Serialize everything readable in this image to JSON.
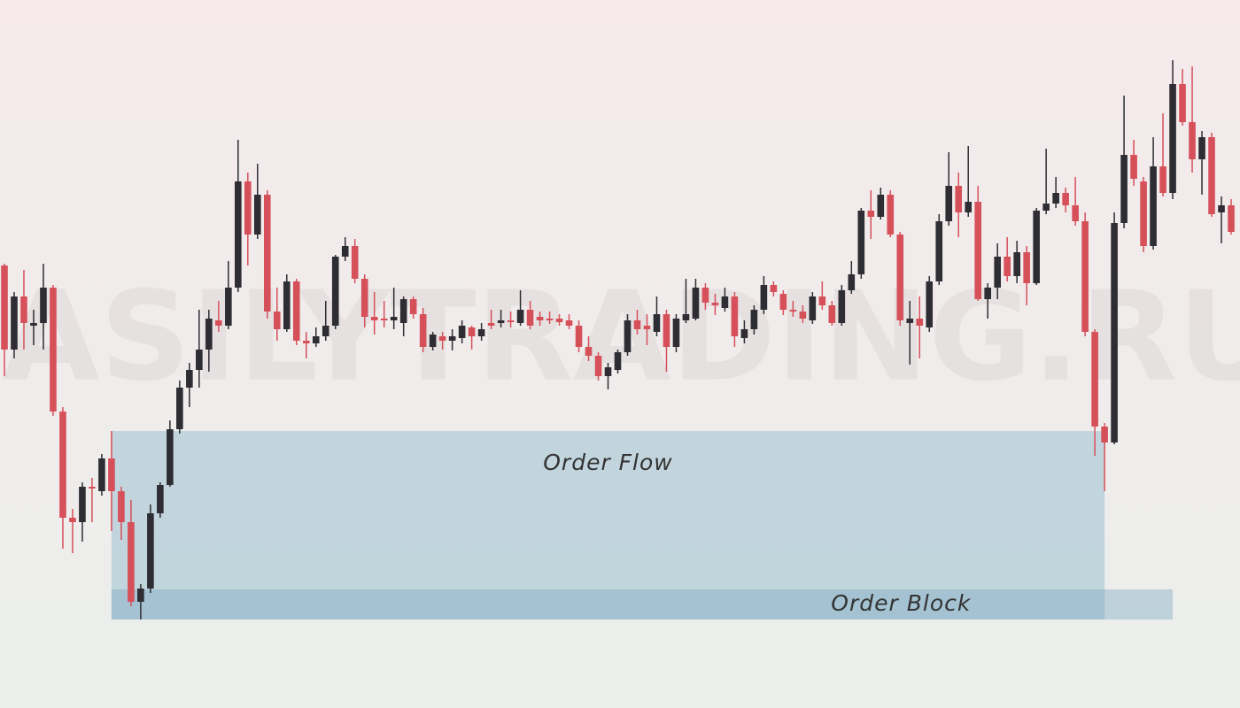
{
  "chart_data": {
    "type": "candlestick",
    "watermark": "EASILYTRADING.RU",
    "ylim": [
      0,
      800
    ],
    "up_color": "#2d2d33",
    "down_color": "#d6505a",
    "open": [
      500,
      405,
      465,
      432,
      435,
      475,
      335,
      215,
      210,
      250,
      245,
      282,
      245,
      210,
      120,
      135,
      220,
      252,
      315,
      362,
      382,
      405,
      438,
      432,
      475,
      595,
      535,
      580,
      448,
      428,
      482,
      415,
      412,
      420,
      432,
      510,
      522,
      485,
      442,
      440,
      438,
      435,
      462,
      445,
      408,
      420,
      415,
      418,
      430,
      420,
      435,
      435,
      438,
      435,
      450,
      442,
      440,
      440,
      438,
      432,
      408,
      398,
      375,
      382,
      402,
      438,
      432,
      425,
      445,
      408,
      438,
      440,
      475,
      458,
      452,
      465,
      418,
      428,
      450,
      478,
      468,
      450,
      448,
      438,
      465,
      455,
      435,
      472,
      490,
      562,
      555,
      580,
      535,
      435,
      440,
      430,
      482,
      550,
      590,
      560,
      572,
      462,
      475,
      510,
      488,
      515,
      480,
      562,
      570,
      582,
      568,
      550,
      425,
      318,
      300,
      548,
      625,
      595,
      522,
      612,
      582,
      705,
      662,
      620,
      645,
      560,
      568
    ],
    "high": [
      502,
      470,
      495,
      450,
      502,
      478,
      340,
      225,
      255,
      260,
      287,
      313,
      250,
      235,
      140,
      230,
      255,
      325,
      370,
      390,
      450,
      450,
      460,
      505,
      642,
      605,
      615,
      585,
      475,
      490,
      485,
      425,
      430,
      460,
      512,
      532,
      530,
      490,
      470,
      460,
      475,
      465,
      465,
      452,
      425,
      425,
      428,
      438,
      432,
      435,
      450,
      450,
      448,
      472,
      460,
      448,
      448,
      445,
      445,
      438,
      420,
      402,
      390,
      405,
      445,
      450,
      445,
      465,
      450,
      445,
      485,
      485,
      480,
      468,
      475,
      470,
      438,
      455,
      488,
      482,
      472,
      460,
      455,
      470,
      482,
      460,
      478,
      505,
      565,
      585,
      588,
      585,
      538,
      460,
      465,
      488,
      558,
      628,
      605,
      635,
      590,
      480,
      525,
      532,
      528,
      522,
      565,
      632,
      600,
      588,
      600,
      560,
      428,
      322,
      560,
      692,
      642,
      600,
      645,
      672,
      732,
      722,
      725,
      652,
      650,
      578,
      575
    ],
    "low": [
      375,
      395,
      405,
      410,
      405,
      330,
      180,
      175,
      188,
      210,
      240,
      200,
      190,
      115,
      100,
      130,
      215,
      250,
      310,
      340,
      362,
      380,
      425,
      428,
      470,
      500,
      530,
      440,
      415,
      425,
      410,
      395,
      408,
      415,
      428,
      505,
      480,
      430,
      422,
      430,
      428,
      420,
      440,
      402,
      404,
      405,
      404,
      412,
      405,
      415,
      428,
      430,
      430,
      432,
      428,
      432,
      434,
      432,
      428,
      402,
      392,
      370,
      360,
      378,
      398,
      422,
      410,
      420,
      380,
      402,
      435,
      438,
      450,
      444,
      448,
      408,
      412,
      422,
      445,
      465,
      444,
      442,
      435,
      434,
      450,
      432,
      432,
      468,
      485,
      530,
      552,
      532,
      432,
      388,
      395,
      425,
      478,
      545,
      532,
      555,
      460,
      440,
      462,
      482,
      480,
      455,
      478,
      558,
      565,
      560,
      545,
      420,
      285,
      245,
      298,
      542,
      590,
      515,
      518,
      578,
      575,
      658,
      605,
      580,
      555,
      525,
      535
    ],
    "close": [
      405,
      465,
      435,
      435,
      475,
      335,
      215,
      210,
      250,
      248,
      282,
      245,
      210,
      120,
      135,
      220,
      252,
      315,
      362,
      382,
      405,
      440,
      432,
      475,
      595,
      535,
      580,
      448,
      428,
      482,
      415,
      412,
      420,
      432,
      510,
      522,
      485,
      442,
      438,
      438,
      442,
      462,
      445,
      408,
      422,
      415,
      420,
      432,
      420,
      428,
      432,
      438,
      436,
      450,
      432,
      438,
      438,
      436,
      432,
      408,
      398,
      375,
      385,
      402,
      438,
      428,
      428,
      445,
      408,
      440,
      445,
      475,
      458,
      455,
      465,
      420,
      428,
      450,
      478,
      470,
      450,
      448,
      440,
      465,
      455,
      435,
      472,
      490,
      562,
      555,
      580,
      535,
      438,
      440,
      432,
      482,
      550,
      590,
      560,
      572,
      462,
      475,
      510,
      488,
      515,
      480,
      562,
      570,
      582,
      568,
      550,
      425,
      318,
      300,
      548,
      625,
      598,
      522,
      612,
      582,
      705,
      662,
      620,
      645,
      558,
      568,
      538
    ],
    "zones": [
      {
        "label": "Order Flow",
        "start": 11,
        "end": 113,
        "low": 100,
        "high": 313,
        "color": "rgba(150,188,206,0.5)"
      },
      {
        "label": "Order Block",
        "start": 11,
        "end": 120,
        "low": 100,
        "high": 134,
        "color": "rgba(120,166,192,0.4)"
      }
    ]
  }
}
